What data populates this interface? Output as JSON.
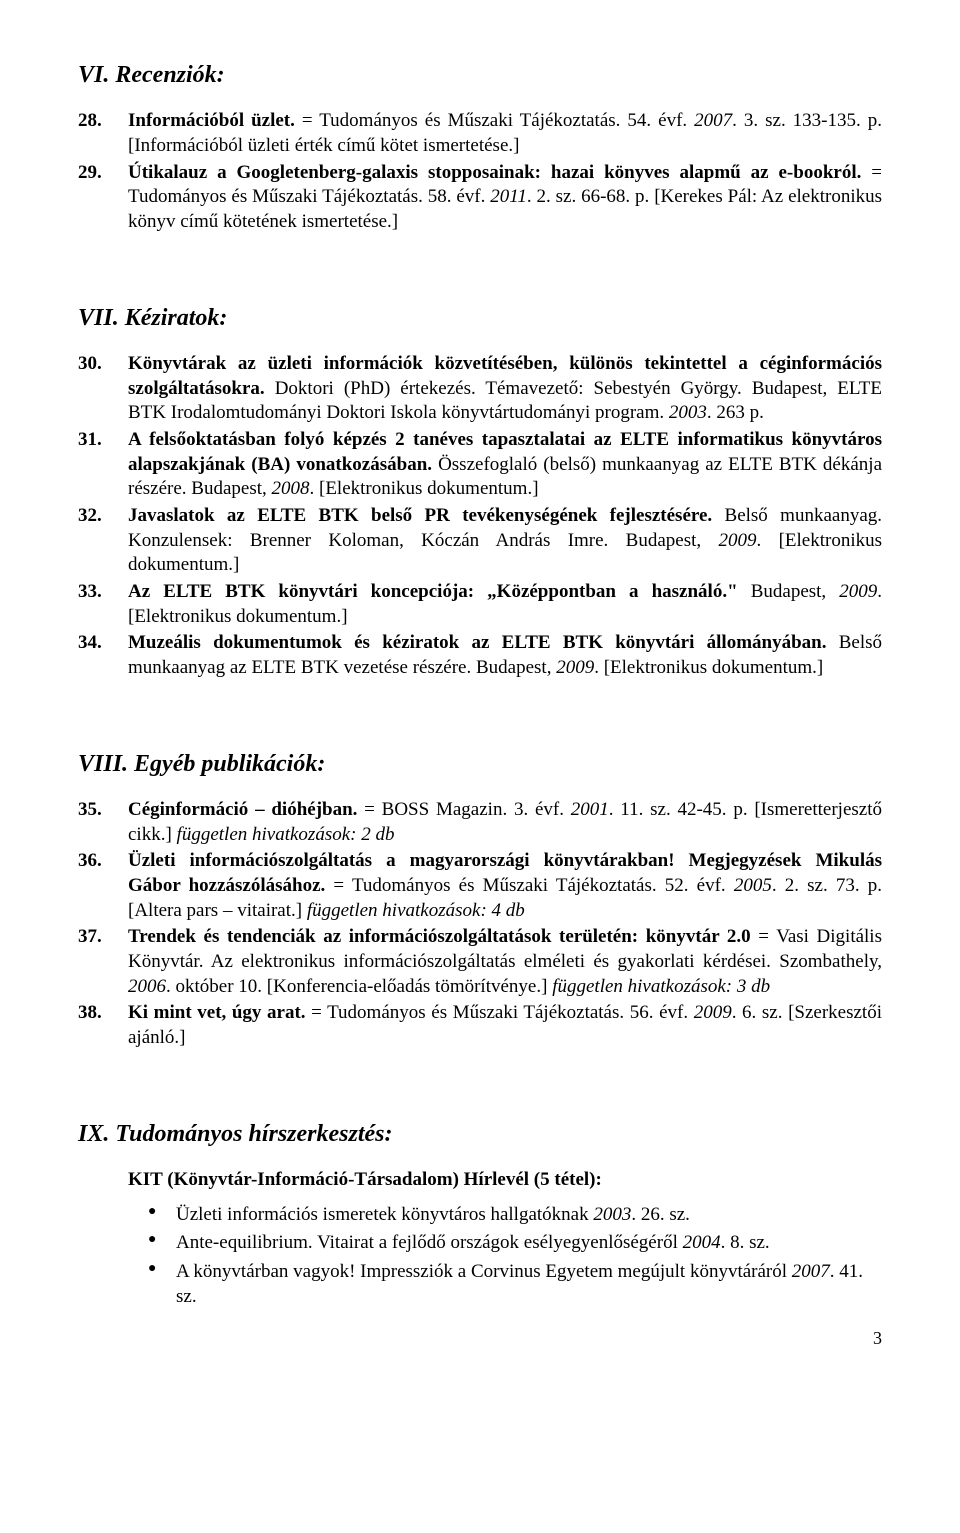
{
  "page_number": "3",
  "sections": {
    "vi": {
      "heading": "VI. Recenziók:",
      "entries": {
        "e28": {
          "num": "28.",
          "bold1": "Információból üzlet.",
          "plain1": " = Tudományos és Műszaki Tájékoztatás. 54. évf. ",
          "ital1": "2007",
          "plain2": ". 3. sz. 133-135. p. [Információból üzleti érték című kötet ismertetése.]"
        },
        "e29": {
          "num": "29.",
          "bold1": "Útikalauz a Googletenberg-galaxis stopposainak: hazai könyves alapmű az e-bookról.",
          "plain1": " = Tudományos és Műszaki Tájékoztatás. 58. évf. ",
          "ital1": "2011",
          "plain2": ". 2. sz. 66-68. p. [Kerekes Pál: Az elektronikus könyv című kötetének ismertetése.]"
        }
      }
    },
    "vii": {
      "heading": "VII. Kéziratok:",
      "entries": {
        "e30": {
          "num": "30.",
          "bold1": "Könyvtárak az üzleti információk közvetítésében, különös tekintettel a céginformációs szolgáltatásokra.",
          "plain1": " Doktori (PhD) értekezés. Témavezető: Sebestyén György. Budapest, ELTE BTK Irodalomtudományi Doktori Iskola könyvtártudományi program. ",
          "ital1": "2003",
          "plain2": ". 263 p."
        },
        "e31": {
          "num": "31.",
          "bold1": "A felsőoktatásban folyó képzés 2 tanéves tapasztalatai az ELTE informatikus könyvtáros alapszakjának (BA) vonatkozásában.",
          "plain1": " Összefoglaló (belső) munkaanyag az ELTE BTK dékánja részére. Budapest, ",
          "ital1": "2008",
          "plain2": ". [Elektronikus dokumentum.]"
        },
        "e32": {
          "num": "32.",
          "bold1": "Javaslatok az ELTE BTK belső PR tevékenységének fejlesztésére.",
          "plain1": " Belső munkaanyag. Konzulensek: Brenner Koloman, Kóczán András Imre. Budapest, ",
          "ital1": "2009",
          "plain2": ". [Elektronikus dokumentum.]"
        },
        "e33": {
          "num": "33.",
          "bold1": "Az ELTE BTK könyvtári koncepciója: „Középpontban a használó.\"",
          "plain1": " Budapest, ",
          "ital1": "2009",
          "plain2": ". [Elektronikus dokumentum.]"
        },
        "e34": {
          "num": "34.",
          "bold1": "Muzeális dokumentumok és kéziratok az ELTE BTK könyvtári állományában.",
          "plain1": " Belső munkaanyag az ELTE BTK vezetése részére. Budapest, ",
          "ital1": "2009",
          "plain2": ". [Elektronikus dokumentum.]"
        }
      }
    },
    "viii": {
      "heading": "VIII. Egyéb publikációk:",
      "entries": {
        "e35": {
          "num": "35.",
          "bold1": "Céginformáció – dióhéjban.",
          "plain1": " = BOSS Magazin. 3. évf. ",
          "ital1": "2001",
          "plain2": ". 11. sz. 42-45. p. [Ismeretterjesztő cikk.] ",
          "ital2": "független hivatkozások: 2 db"
        },
        "e36": {
          "num": "36.",
          "bold1": "Üzleti információszolgáltatás a magyarországi könyvtárakban! Megjegyzések Mikulás Gábor hozzászólásához.",
          "plain1": " = Tudományos és Műszaki Tájékoztatás. 52. évf. ",
          "ital1": "2005",
          "plain2": ". 2. sz. 73. p. [Altera pars – vitairat.] ",
          "ital2": "független hivatkozások: 4 db"
        },
        "e37": {
          "num": "37.",
          "bold1": "Trendek és tendenciák az információszolgáltatások területén: könyvtár 2.0",
          "plain1": " = Vasi Digitális Könyvtár. Az elektronikus információszolgáltatás elméleti és gyakorlati kérdései. Szombathely, ",
          "ital1": "2006",
          "plain2": ". október 10. [Konferencia-előadás tömörítvénye.] ",
          "ital2": "független hivatkozások: 3 db"
        },
        "e38": {
          "num": "38.",
          "bold1": "Ki mint vet, úgy arat.",
          "plain1": " = Tudományos és Műszaki Tájékoztatás. 56. évf. ",
          "ital1": "2009",
          "plain2": ". 6. sz. [Szerkesztői ajánló.]"
        }
      }
    },
    "ix": {
      "heading": "IX. Tudományos hírszerkesztés:",
      "subheading": "KIT (Könyvtár-Információ-Társadalom) Hírlevél (5 tétel):",
      "bullets": {
        "b1": {
          "t1": "Üzleti információs ismeretek könyvtáros hallgatóknak ",
          "i1": "2003",
          "t2": ". 26. sz."
        },
        "b2": {
          "t1": "Ante-equilibrium. Vitairat a fejlődő országok esélyegyenlőségéről ",
          "i1": "2004",
          "t2": ". 8. sz."
        },
        "b3": {
          "t1": "A könyvtárban vagyok! Impressziók a Corvinus Egyetem megújult könyvtáráról ",
          "i1": "2007",
          "t2": ". 41. sz."
        }
      }
    }
  }
}
